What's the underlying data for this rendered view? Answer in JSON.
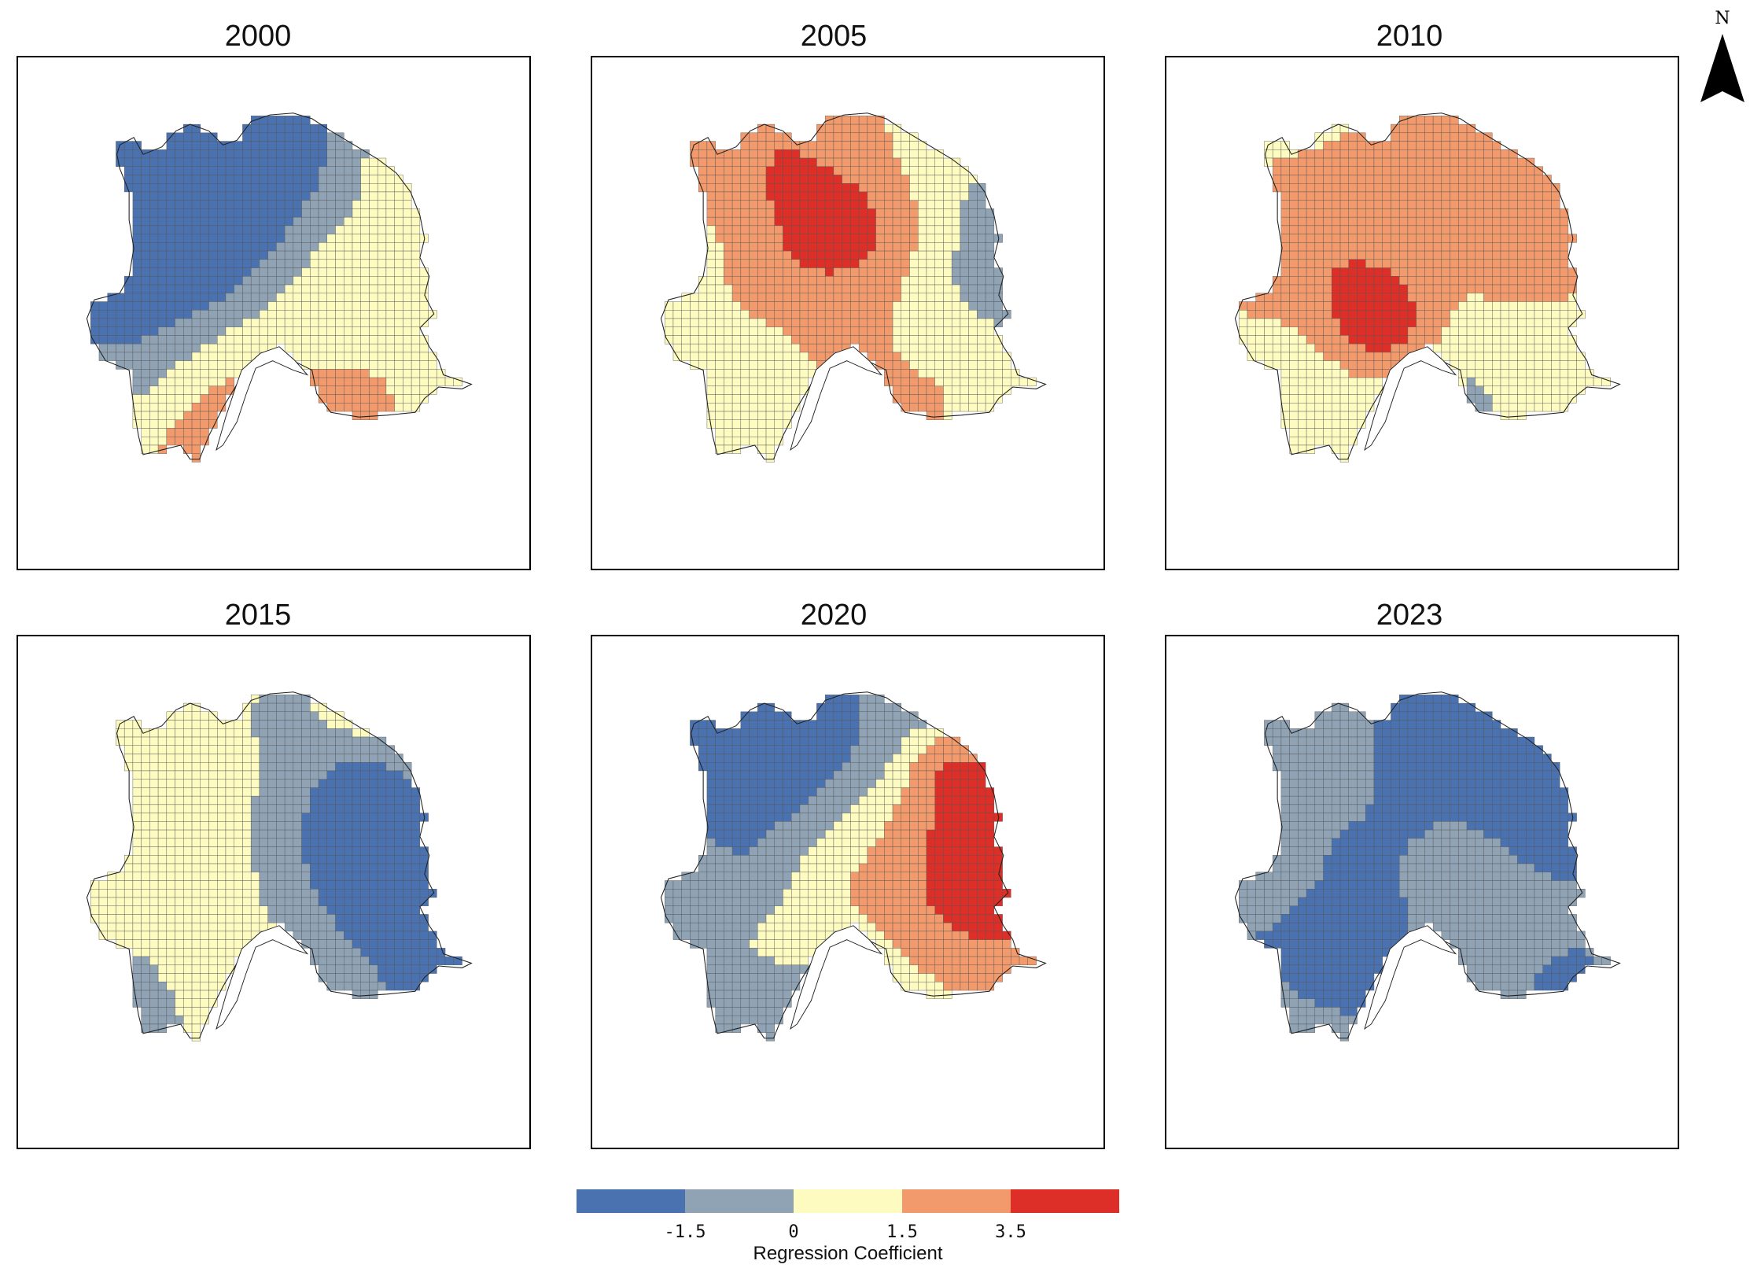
{
  "panels": [
    {
      "title": "2000",
      "seed": 11
    },
    {
      "title": "2005",
      "seed": 23
    },
    {
      "title": "2010",
      "seed": 37
    },
    {
      "title": "2015",
      "seed": 41
    },
    {
      "title": "2020",
      "seed": 59
    },
    {
      "title": "2023",
      "seed": 67
    }
  ],
  "north_arrow": {
    "label": "N",
    "icon": "north-arrow-icon"
  },
  "legend": {
    "title": "Regression Coefficient",
    "classes": [
      {
        "color": "#4a72b0",
        "range": "< -1.5"
      },
      {
        "color": "#8fa3b5",
        "range": "-1.5 to 0"
      },
      {
        "color": "#fdfbc0",
        "range": "0 to 1.5"
      },
      {
        "color": "#f29a6c",
        "range": "1.5 to 3.5"
      },
      {
        "color": "#dd2e27",
        "range": "> 3.5"
      }
    ],
    "ticks": [
      "-1.5",
      "0",
      "1.5",
      "3.5"
    ]
  }
}
